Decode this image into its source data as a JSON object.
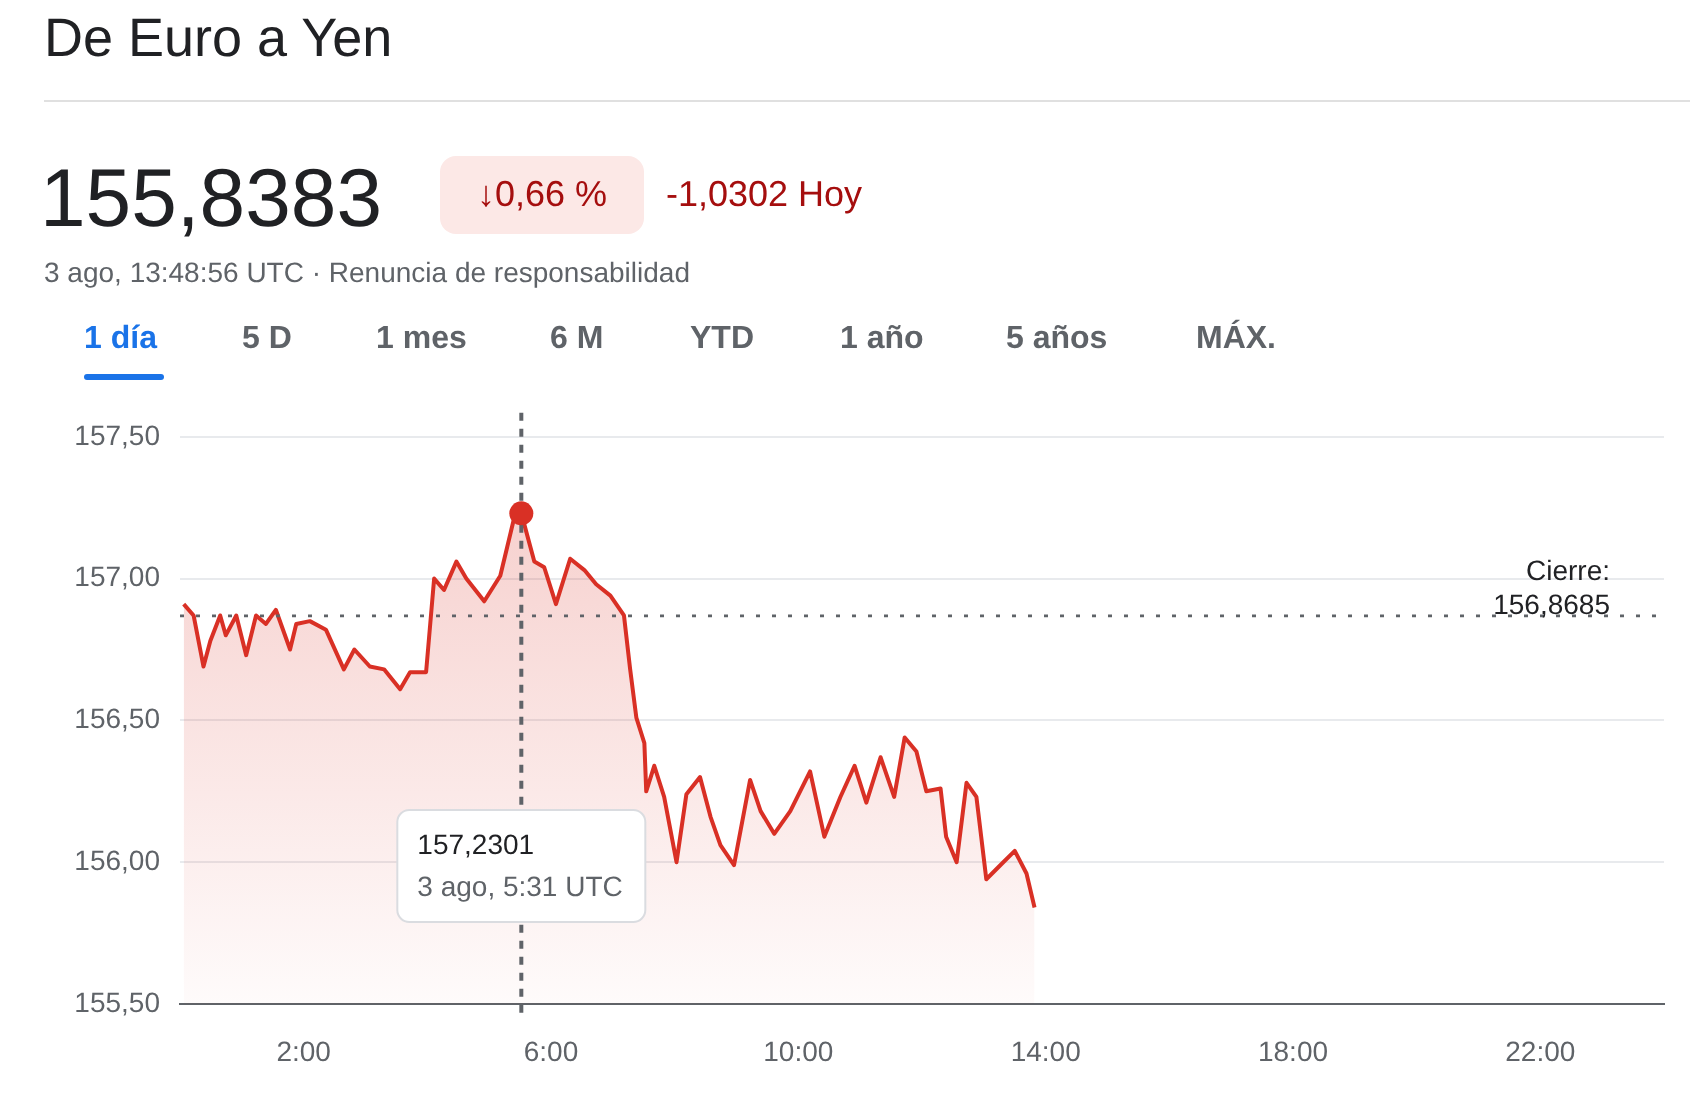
{
  "chart_data": {
    "type": "area",
    "title": "De Euro a Yen",
    "annotations": [
      "155,8383",
      "↓0,66 %",
      "-1,0302 Hoy",
      "3 ago, 13:48:56 UTC · Renuncia de responsabilidad",
      "1 día",
      "5 D",
      "1 mes",
      "6 M",
      "YTD",
      "1 año",
      "5 años",
      "MÁX.",
      "157,2301\n3 ago, 5:31 UTC"
    ],
    "x": [
      0.06,
      0.22,
      0.38,
      0.49,
      0.65,
      0.74,
      0.91,
      1.07,
      1.23,
      1.39,
      1.55,
      1.78,
      1.88,
      2.1,
      2.36,
      2.65,
      2.82,
      3.07,
      3.3,
      3.56,
      3.72,
      3.98,
      4.11,
      4.27,
      4.47,
      4.63,
      4.92,
      5.18,
      5.4,
      5.52,
      5.73,
      5.89,
      6.08,
      6.31,
      6.54,
      6.73,
      6.96,
      7.18,
      7.28,
      7.38,
      7.51,
      7.54,
      7.67,
      7.83,
      8.03,
      8.19,
      8.41,
      8.58,
      8.74,
      8.96,
      9.22,
      9.39,
      9.61,
      9.87,
      10.19,
      10.42,
      10.68,
      10.91,
      11.1,
      11.33,
      11.55,
      11.72,
      11.91,
      12.07,
      12.3,
      12.39,
      12.56,
      12.72,
      12.88,
      13.04,
      13.27,
      13.5,
      13.69,
      13.82
    ],
    "series": [
      {
        "color": "#d93025",
        "values": [
          156.91,
          156.87,
          156.69,
          156.78,
          156.87,
          156.8,
          156.87,
          156.73,
          156.87,
          156.84,
          156.89,
          156.75,
          156.84,
          156.85,
          156.82,
          156.68,
          156.75,
          156.69,
          156.68,
          156.61,
          156.67,
          156.67,
          157.0,
          156.96,
          157.06,
          157.0,
          156.92,
          157.01,
          157.21,
          157.23,
          157.06,
          157.04,
          156.91,
          157.07,
          157.03,
          156.98,
          156.94,
          156.87,
          156.68,
          156.51,
          156.42,
          156.25,
          156.34,
          156.23,
          156.0,
          156.24,
          156.3,
          156.16,
          156.06,
          155.99,
          156.29,
          156.18,
          156.1,
          156.18,
          156.32,
          156.09,
          156.23,
          156.34,
          156.21,
          156.37,
          156.23,
          156.44,
          156.39,
          156.25,
          156.26,
          156.09,
          156.0,
          156.28,
          156.23,
          155.94,
          155.99,
          156.04,
          155.96,
          155.84
        ]
      }
    ],
    "xlim": [
      0,
      24
    ],
    "xticks": [
      {
        "value": 2,
        "label": "2:00"
      },
      {
        "value": 6,
        "label": "6:00"
      },
      {
        "value": 10,
        "label": "10:00"
      },
      {
        "value": 14,
        "label": "14:00"
      },
      {
        "value": 18,
        "label": "18:00"
      },
      {
        "value": 22,
        "label": "22:00"
      }
    ],
    "ylim": [
      155.5,
      157.5
    ],
    "yticks": [
      {
        "value": 155.5,
        "label": "155,50"
      },
      {
        "value": 156,
        "label": "156,00"
      },
      {
        "value": 156.5,
        "label": "156,50"
      },
      {
        "value": 157,
        "label": "157,00"
      },
      {
        "value": 157.5,
        "label": "157,50"
      }
    ],
    "ref_lines": [
      {
        "axis": "y",
        "value": 156.8685,
        "label": "Cierre:\n156,8685",
        "line_style": "dotted",
        "color": "#5f6368"
      },
      {
        "axis": "x",
        "value": 5.52,
        "line_style": "dashed",
        "color": "#5f6368"
      }
    ],
    "grid": "y",
    "legend": false
  }
}
